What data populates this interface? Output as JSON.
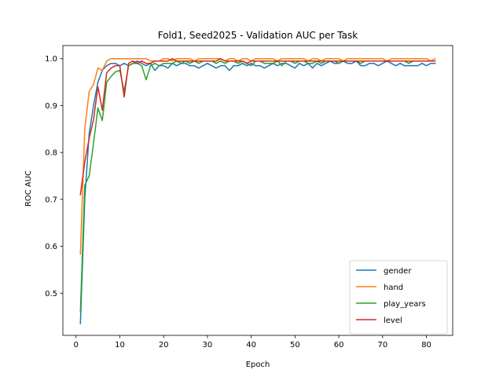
{
  "chart_data": {
    "type": "line",
    "title": "Fold1, Seed2025 - Validation AUC per Task",
    "xlabel": "Epoch",
    "ylabel": "ROC AUC",
    "xlim": [
      -3,
      86
    ],
    "ylim": [
      0.41,
      1.028
    ],
    "xticks": [
      0,
      10,
      20,
      30,
      40,
      50,
      60,
      70,
      80
    ],
    "yticks": [
      0.5,
      0.6,
      0.7,
      0.8,
      0.9,
      1.0
    ],
    "ytick_labels": [
      "0.5",
      "0.6",
      "0.7",
      "0.8",
      "0.9",
      "1.0"
    ],
    "grid": false,
    "legend_position": "lower-right",
    "x": [
      1,
      2,
      3,
      4,
      5,
      6,
      7,
      8,
      9,
      10,
      11,
      12,
      13,
      14,
      15,
      16,
      17,
      18,
      19,
      20,
      21,
      22,
      23,
      24,
      25,
      26,
      27,
      28,
      29,
      30,
      31,
      32,
      33,
      34,
      35,
      36,
      37,
      38,
      39,
      40,
      41,
      42,
      43,
      44,
      45,
      46,
      47,
      48,
      49,
      50,
      51,
      52,
      53,
      54,
      55,
      56,
      57,
      58,
      59,
      60,
      61,
      62,
      63,
      64,
      65,
      66,
      67,
      68,
      69,
      70,
      71,
      72,
      73,
      74,
      75,
      76,
      77,
      78,
      79,
      80,
      81,
      82
    ],
    "series": [
      {
        "name": "gender",
        "color": "#1f77b4",
        "values": [
          0.435,
          0.7,
          0.84,
          0.9,
          0.95,
          0.975,
          0.985,
          0.99,
          0.99,
          0.985,
          0.99,
          0.985,
          0.99,
          0.995,
          0.99,
          0.985,
          0.99,
          0.975,
          0.985,
          0.985,
          0.98,
          0.99,
          0.985,
          0.99,
          0.99,
          0.985,
          0.985,
          0.98,
          0.985,
          0.99,
          0.985,
          0.98,
          0.985,
          0.985,
          0.975,
          0.985,
          0.985,
          0.99,
          0.985,
          0.99,
          0.985,
          0.985,
          0.98,
          0.985,
          0.99,
          0.985,
          0.99,
          0.99,
          0.985,
          0.98,
          0.99,
          0.985,
          0.99,
          0.98,
          0.99,
          0.985,
          0.99,
          0.995,
          0.99,
          0.99,
          0.995,
          0.99,
          0.99,
          0.995,
          0.985,
          0.985,
          0.99,
          0.99,
          0.985,
          0.99,
          0.995,
          0.99,
          0.985,
          0.99,
          0.985,
          0.985,
          0.985,
          0.985,
          0.99,
          0.985,
          0.99,
          0.99
        ]
      },
      {
        "name": "hand",
        "color": "#ff7f0e",
        "values": [
          0.583,
          0.85,
          0.93,
          0.945,
          0.98,
          0.975,
          0.995,
          1.0,
          1.0,
          1.0,
          1.0,
          1.0,
          1.0,
          1.0,
          1.0,
          1.0,
          0.995,
          0.995,
          0.995,
          1.0,
          1.0,
          0.995,
          1.0,
          1.0,
          1.0,
          1.0,
          0.995,
          1.0,
          1.0,
          1.0,
          1.0,
          1.0,
          1.0,
          0.995,
          1.0,
          1.0,
          0.995,
          1.0,
          1.0,
          0.995,
          1.0,
          1.0,
          1.0,
          1.0,
          1.0,
          0.995,
          1.0,
          1.0,
          1.0,
          1.0,
          1.0,
          1.0,
          0.995,
          1.0,
          1.0,
          0.995,
          1.0,
          1.0,
          1.0,
          1.0,
          0.995,
          1.0,
          1.0,
          1.0,
          1.0,
          1.0,
          1.0,
          1.0,
          1.0,
          1.0,
          0.995,
          1.0,
          1.0,
          1.0,
          1.0,
          1.0,
          1.0,
          1.0,
          1.0,
          1.0,
          0.995,
          1.0
        ]
      },
      {
        "name": "play_years",
        "color": "#2ca02c",
        "values": [
          0.46,
          0.73,
          0.75,
          0.82,
          0.895,
          0.868,
          0.95,
          0.962,
          0.972,
          0.975,
          0.93,
          0.985,
          0.99,
          0.99,
          0.985,
          0.955,
          0.985,
          0.99,
          0.985,
          0.99,
          0.99,
          0.99,
          0.995,
          0.99,
          0.995,
          0.99,
          0.995,
          0.99,
          0.995,
          0.995,
          0.995,
          0.99,
          0.995,
          0.99,
          0.995,
          0.995,
          0.99,
          0.995,
          0.99,
          0.985,
          0.995,
          0.995,
          0.99,
          0.99,
          0.99,
          0.995,
          0.985,
          0.995,
          0.995,
          0.99,
          0.995,
          0.995,
          0.99,
          0.99,
          0.995,
          0.99,
          0.995,
          0.995,
          0.995,
          0.99,
          0.995,
          0.995,
          0.995,
          0.995,
          0.99,
          0.995,
          0.995,
          0.995,
          0.995,
          0.995,
          0.995,
          0.995,
          0.995,
          0.995,
          0.995,
          0.99,
          0.995,
          0.995,
          0.995,
          0.995,
          0.995,
          0.995
        ]
      },
      {
        "name": "level",
        "color": "#d62728",
        "values": [
          0.71,
          0.78,
          0.83,
          0.87,
          0.94,
          0.89,
          0.97,
          0.98,
          0.985,
          0.985,
          0.918,
          0.99,
          0.995,
          0.99,
          0.995,
          0.99,
          0.99,
          0.995,
          0.995,
          0.995,
          0.995,
          1.0,
          0.995,
          0.995,
          0.995,
          0.995,
          0.995,
          0.995,
          0.995,
          0.995,
          0.995,
          0.995,
          1.0,
          0.995,
          0.995,
          0.995,
          0.995,
          0.995,
          0.99,
          0.995,
          0.995,
          0.995,
          0.995,
          0.995,
          0.995,
          0.995,
          0.995,
          0.995,
          0.995,
          0.995,
          0.995,
          0.995,
          0.995,
          0.995,
          0.995,
          0.995,
          0.995,
          0.995,
          0.995,
          0.995,
          0.995,
          0.995,
          0.995,
          0.995,
          0.995,
          0.995,
          0.995,
          0.995,
          0.995,
          0.995,
          0.995,
          0.995,
          0.995,
          0.995,
          0.995,
          0.995,
          0.995,
          0.995,
          0.995,
          0.995,
          0.995,
          0.995
        ]
      }
    ]
  }
}
